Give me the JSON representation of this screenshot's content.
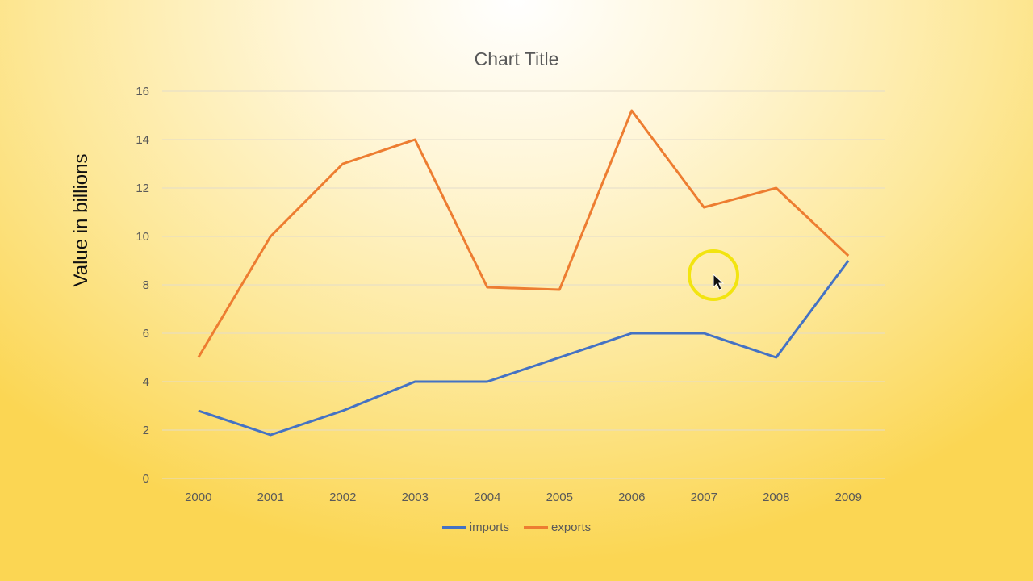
{
  "chart_data": {
    "type": "line",
    "title": "Chart Title",
    "xlabel": "",
    "ylabel": "Value in billions",
    "categories": [
      "2000",
      "2001",
      "2002",
      "2003",
      "2004",
      "2005",
      "2006",
      "2007",
      "2008",
      "2009"
    ],
    "series": [
      {
        "name": "imports",
        "color": "#4472c4",
        "values": [
          2.8,
          1.8,
          2.8,
          4,
          4,
          5,
          6,
          6,
          5,
          9
        ]
      },
      {
        "name": "exports",
        "color": "#ed7d31",
        "values": [
          5,
          10,
          13,
          14,
          7.9,
          7.8,
          15.2,
          11.2,
          12,
          9.2
        ]
      }
    ],
    "ylim": [
      0,
      16
    ],
    "yticks": [
      "0",
      "2",
      "4",
      "6",
      "8",
      "10",
      "12",
      "14",
      "16"
    ],
    "grid": true,
    "legend_position": "bottom"
  }
}
